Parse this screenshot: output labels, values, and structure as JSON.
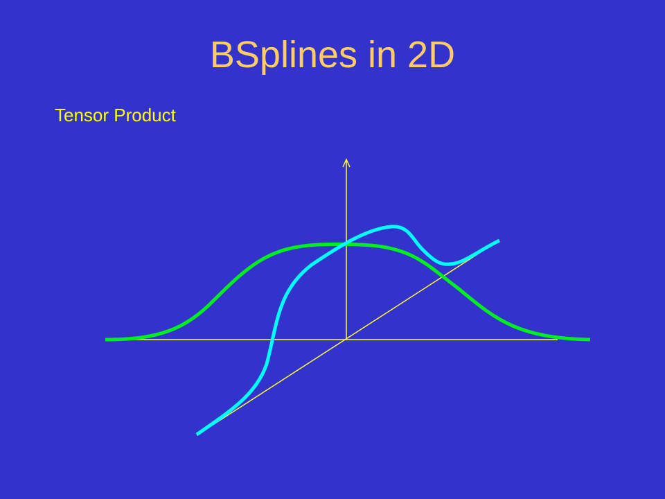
{
  "slide": {
    "title": "BSplines in 2D",
    "subtitle": "Tensor Product"
  },
  "colors": {
    "background": "#3333cc",
    "title": "#ffcc66",
    "subtitle": "#ffff00",
    "axes": "#ffff33",
    "bell_curve": "#00ee22",
    "spline_curve": "#00ffff"
  },
  "diagram": {
    "elements": [
      "horizontal-axis",
      "vertical-axis-with-arrow",
      "diagonal-axis",
      "green-bell-curve",
      "cyan-spline-curve"
    ]
  }
}
